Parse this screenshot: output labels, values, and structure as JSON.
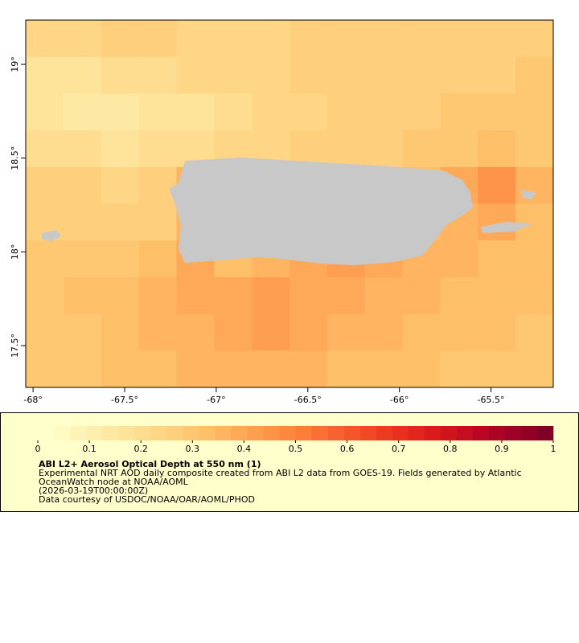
{
  "chart_data": {
    "type": "raster-map",
    "xlim": [
      -68.04,
      -65.16
    ],
    "ylim": [
      17.277,
      19.236
    ],
    "xticks": [
      {
        "value": -68,
        "label": "-68°"
      },
      {
        "value": -67.5,
        "label": "-67.5°"
      },
      {
        "value": -67,
        "label": "-67°"
      },
      {
        "value": -66.5,
        "label": "-66.5°"
      },
      {
        "value": -66,
        "label": "-66°"
      },
      {
        "value": -65.5,
        "label": "-65.5°"
      }
    ],
    "yticks": [
      {
        "value": 19,
        "label": "19°"
      },
      {
        "value": 18.5,
        "label": "18.5°"
      },
      {
        "value": 18,
        "label": "18°"
      },
      {
        "value": 17.5,
        "label": "17.5°"
      }
    ],
    "grid_values": [
      [
        0.22,
        0.24,
        0.26,
        0.25,
        0.23,
        0.22,
        0.24,
        0.26,
        0.25,
        0.27,
        0.28,
        0.26,
        0.25,
        0.27
      ],
      [
        0.18,
        0.17,
        0.19,
        0.2,
        0.22,
        0.24,
        0.23,
        0.25,
        0.26,
        0.25,
        0.27,
        0.26,
        0.28,
        0.29
      ],
      [
        0.16,
        0.15,
        0.14,
        0.16,
        0.18,
        0.2,
        0.22,
        0.24,
        0.25,
        0.26,
        0.27,
        0.29,
        0.3,
        0.31
      ],
      [
        0.2,
        0.19,
        0.18,
        0.19,
        0.21,
        0.23,
        0.24,
        0.25,
        0.27,
        0.28,
        0.3,
        0.31,
        0.32,
        0.3
      ],
      [
        0.26,
        0.25,
        0.24,
        0.26,
        0.35,
        0.3,
        0.3,
        0.3,
        0.3,
        0.3,
        0.32,
        0.38,
        0.45,
        0.36
      ],
      [
        0.28,
        0.27,
        0.26,
        0.28,
        0.36,
        0.3,
        0.3,
        0.3,
        0.3,
        0.3,
        0.33,
        0.35,
        0.38,
        0.34
      ],
      [
        0.3,
        0.29,
        0.31,
        0.33,
        0.38,
        0.34,
        0.36,
        0.38,
        0.42,
        0.4,
        0.37,
        0.35,
        0.34,
        0.33
      ],
      [
        0.31,
        0.32,
        0.34,
        0.36,
        0.38,
        0.4,
        0.42,
        0.4,
        0.38,
        0.36,
        0.35,
        0.34,
        0.33,
        0.32
      ],
      [
        0.3,
        0.31,
        0.33,
        0.35,
        0.37,
        0.39,
        0.41,
        0.39,
        0.37,
        0.35,
        0.34,
        0.33,
        0.32,
        0.31
      ],
      [
        0.29,
        0.3,
        0.32,
        0.33,
        0.35,
        0.36,
        0.37,
        0.36,
        0.34,
        0.33,
        0.32,
        0.31,
        0.3,
        0.3
      ]
    ],
    "colorbar": {
      "range": [
        0,
        1
      ],
      "ticks": [
        0,
        0.1,
        0.2,
        0.3,
        0.4,
        0.5,
        0.6,
        0.7,
        0.8,
        0.9,
        1
      ],
      "colors": [
        "#ffffcc",
        "#fffac2",
        "#fff4b8",
        "#ffefae",
        "#fee9a4",
        "#fee39a",
        "#fedd90",
        "#fed686",
        "#fecf7c",
        "#fec872",
        "#febf69",
        "#feb460",
        "#fda958",
        "#fd9e50",
        "#fd9348",
        "#fc8840",
        "#fc7c3a",
        "#fb6f35",
        "#f86230",
        "#f5552b",
        "#f14826",
        "#ed3b22",
        "#e7301f",
        "#e0261d",
        "#d91c1b",
        "#d0141d",
        "#c50d20",
        "#b90723",
        "#ad0325",
        "#a00126",
        "#930026",
        "#800026"
      ]
    },
    "title": "ABI L2+ Aerosol Optical Depth at 550 nm (1)",
    "description": [
      "Experimental NRT AOD daily composite created from ABI L2 data from GOES-19. Fields generated by Atlantic",
      "OceanWatch node at NOAA/AOML",
      "(2026-03-19T00:00:00Z)",
      "Data courtesy of USDOC/NOAA/OAR/AOML/PHOD"
    ]
  }
}
